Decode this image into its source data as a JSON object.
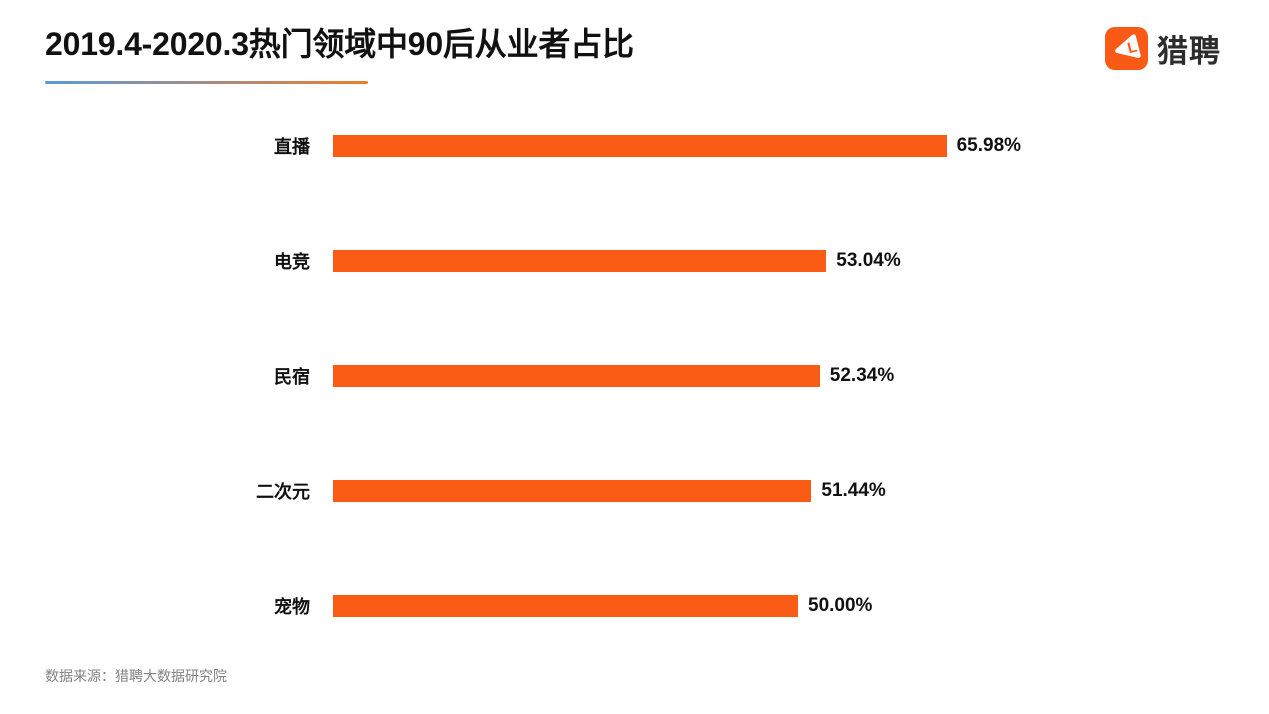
{
  "page": {
    "title": "2019.4-2020.3热门领域中90后从业者占比",
    "source": "数据来源：猎聘大数据研究院"
  },
  "logo": {
    "brand": "猎聘",
    "icon": "liepin-play-l-icon",
    "icon_color": "#F95B16",
    "text_color": "#2d2d2d"
  },
  "colors": {
    "bar": "#FB5C15",
    "title_text": "#111111",
    "value_text": "#111111",
    "source_text": "#828282",
    "underline_from": "#5B9BD5",
    "underline_to": "#ED7D31"
  },
  "chart_data": {
    "type": "bar",
    "orientation": "horizontal",
    "title": "2019.4-2020.3热门领域中90后从业者占比",
    "categories": [
      "直播",
      "电竞",
      "民宿",
      "二次元",
      "宠物"
    ],
    "values": [
      65.98,
      53.04,
      52.34,
      51.44,
      50.0
    ],
    "value_labels": [
      "65.98%",
      "53.04%",
      "52.34%",
      "51.44%",
      "50.00%"
    ],
    "xlabel": "",
    "ylabel": "",
    "xlim": [
      0,
      66
    ],
    "grid": false,
    "legend": false,
    "bar_color": "#FB5C15"
  }
}
